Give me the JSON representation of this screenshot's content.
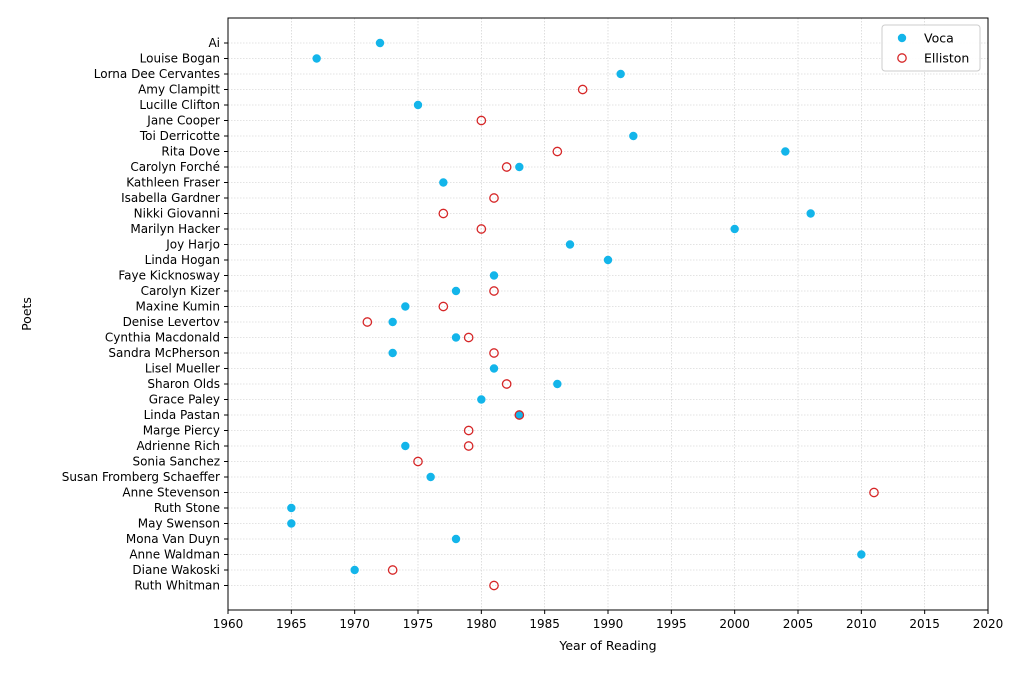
{
  "chart_data": {
    "type": "scatter",
    "xlabel": "Year of Reading",
    "ylabel": "Poets",
    "xlim": [
      1960,
      2020
    ],
    "xticks": [
      1960,
      1965,
      1970,
      1975,
      1980,
      1985,
      1990,
      1995,
      2000,
      2005,
      2010,
      2015,
      2020
    ],
    "grid": true,
    "legend_position": "top-right",
    "categories": [
      "Ai",
      "Louise Bogan",
      "Lorna Dee Cervantes",
      "Amy Clampitt",
      "Lucille Clifton",
      "Jane Cooper",
      "Toi Derricotte",
      "Rita Dove",
      "Carolyn Forché",
      "Kathleen Fraser",
      "Isabella Gardner",
      "Nikki Giovanni",
      "Marilyn Hacker",
      "Joy Harjo",
      "Linda Hogan",
      "Faye Kicknosway",
      "Carolyn Kizer",
      "Maxine Kumin",
      "Denise Levertov",
      "Cynthia Macdonald",
      "Sandra McPherson",
      "Lisel Mueller",
      "Sharon Olds",
      "Grace Paley",
      "Linda Pastan",
      "Marge Piercy",
      "Adrienne Rich",
      "Sonia Sanchez",
      "Susan Fromberg Schaeffer",
      "Anne Stevenson",
      "Ruth Stone",
      "May Swenson",
      "Mona Van Duyn",
      "Anne Waldman",
      "Diane Wakoski",
      "Ruth Whitman"
    ],
    "series": [
      {
        "name": "Voca",
        "color": "#13b5ea",
        "marker": "filled-circle",
        "points": [
          {
            "x": 1972,
            "y": "Ai"
          },
          {
            "x": 1967,
            "y": "Louise Bogan"
          },
          {
            "x": 1991,
            "y": "Lorna Dee Cervantes"
          },
          {
            "x": 1975,
            "y": "Lucille Clifton"
          },
          {
            "x": 1992,
            "y": "Toi Derricotte"
          },
          {
            "x": 2004,
            "y": "Rita Dove"
          },
          {
            "x": 1983,
            "y": "Carolyn Forché"
          },
          {
            "x": 1977,
            "y": "Kathleen Fraser"
          },
          {
            "x": 2006,
            "y": "Nikki Giovanni"
          },
          {
            "x": 2000,
            "y": "Marilyn Hacker"
          },
          {
            "x": 1987,
            "y": "Joy Harjo"
          },
          {
            "x": 1990,
            "y": "Linda Hogan"
          },
          {
            "x": 1981,
            "y": "Faye Kicknosway"
          },
          {
            "x": 1978,
            "y": "Carolyn Kizer"
          },
          {
            "x": 1974,
            "y": "Maxine Kumin"
          },
          {
            "x": 1973,
            "y": "Denise Levertov"
          },
          {
            "x": 1978,
            "y": "Cynthia Macdonald"
          },
          {
            "x": 1973,
            "y": "Sandra McPherson"
          },
          {
            "x": 1981,
            "y": "Lisel Mueller"
          },
          {
            "x": 1986,
            "y": "Sharon Olds"
          },
          {
            "x": 1980,
            "y": "Grace Paley"
          },
          {
            "x": 1983,
            "y": "Linda Pastan"
          },
          {
            "x": 1974,
            "y": "Adrienne Rich"
          },
          {
            "x": 1976,
            "y": "Susan Fromberg Schaeffer"
          },
          {
            "x": 1965,
            "y": "Ruth Stone"
          },
          {
            "x": 1965,
            "y": "May Swenson"
          },
          {
            "x": 1978,
            "y": "Mona Van Duyn"
          },
          {
            "x": 2010,
            "y": "Anne Waldman"
          },
          {
            "x": 1970,
            "y": "Diane Wakoski"
          }
        ]
      },
      {
        "name": "Elliston",
        "color": "#d62728",
        "marker": "open-circle",
        "points": [
          {
            "x": 1988,
            "y": "Amy Clampitt"
          },
          {
            "x": 1980,
            "y": "Jane Cooper"
          },
          {
            "x": 1986,
            "y": "Rita Dove"
          },
          {
            "x": 1982,
            "y": "Carolyn Forché"
          },
          {
            "x": 1981,
            "y": "Isabella Gardner"
          },
          {
            "x": 1977,
            "y": "Nikki Giovanni"
          },
          {
            "x": 1980,
            "y": "Marilyn Hacker"
          },
          {
            "x": 1981,
            "y": "Carolyn Kizer"
          },
          {
            "x": 1977,
            "y": "Maxine Kumin"
          },
          {
            "x": 1971,
            "y": "Denise Levertov"
          },
          {
            "x": 1979,
            "y": "Cynthia Macdonald"
          },
          {
            "x": 1981,
            "y": "Sandra McPherson"
          },
          {
            "x": 1982,
            "y": "Sharon Olds"
          },
          {
            "x": 1983,
            "y": "Linda Pastan"
          },
          {
            "x": 1979,
            "y": "Marge Piercy"
          },
          {
            "x": 1979,
            "y": "Adrienne Rich"
          },
          {
            "x": 1975,
            "y": "Sonia Sanchez"
          },
          {
            "x": 2011,
            "y": "Anne Stevenson"
          },
          {
            "x": 1973,
            "y": "Diane Wakoski"
          },
          {
            "x": 1981,
            "y": "Ruth Whitman"
          }
        ]
      }
    ]
  }
}
